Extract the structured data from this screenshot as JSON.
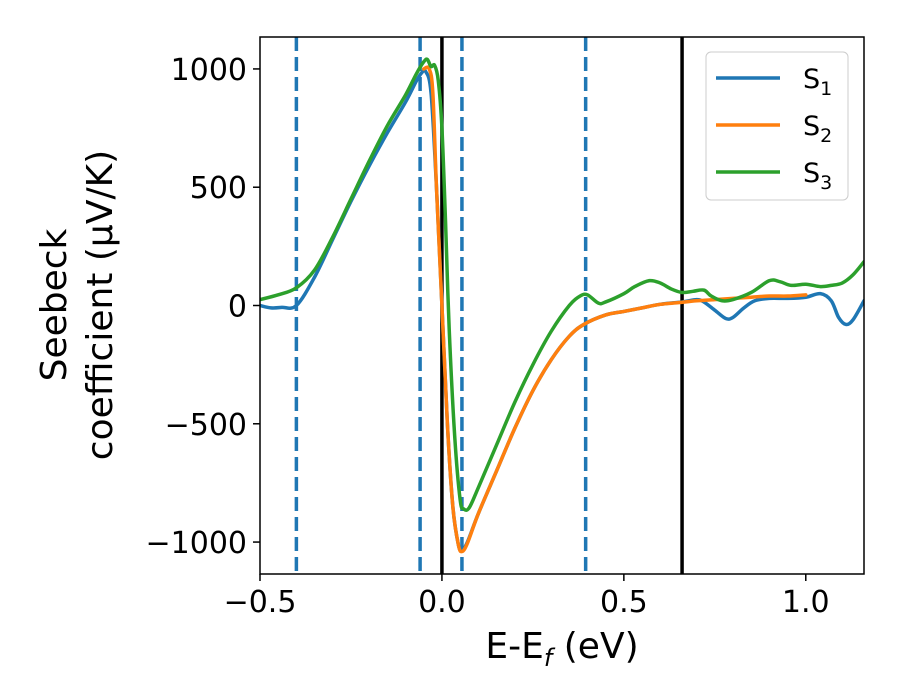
{
  "chart_data": {
    "type": "line",
    "xlabel": "E-E",
    "xlabel_sub": "f",
    "xlabel_unit": " (eV)",
    "ylabel_line1": "Seebeck",
    "ylabel_line2": "coefficient  (μV/K)",
    "xlim": [
      -0.5,
      1.16
    ],
    "ylim": [
      -1135,
      1135
    ],
    "x_ticks": [
      {
        "value": -0.5,
        "label": "−0.5"
      },
      {
        "value": 0.0,
        "label": "0.0"
      },
      {
        "value": 0.5,
        "label": "0.5"
      },
      {
        "value": 1.0,
        "label": "1.0"
      }
    ],
    "y_ticks": [
      {
        "value": 1000,
        "label": "1000"
      },
      {
        "value": 500,
        "label": "500"
      },
      {
        "value": 0,
        "label": "0"
      },
      {
        "value": -500,
        "label": "−500"
      },
      {
        "value": -1000,
        "label": "−1000"
      }
    ],
    "grid": false,
    "legend_position": "top-right",
    "vlines_solid": [
      0.0,
      0.66
    ],
    "vlines_dashed": [
      -0.4,
      -0.06,
      0.055,
      0.395
    ],
    "series": [
      {
        "name": "S",
        "sub": "1",
        "color": "#1f77b4",
        "points": [
          [
            -0.5,
            0
          ],
          [
            -0.47,
            -10
          ],
          [
            -0.44,
            -8
          ],
          [
            -0.4,
            0
          ],
          [
            -0.35,
            120
          ],
          [
            -0.3,
            280
          ],
          [
            -0.25,
            440
          ],
          [
            -0.2,
            590
          ],
          [
            -0.15,
            730
          ],
          [
            -0.1,
            860
          ],
          [
            -0.07,
            950
          ],
          [
            -0.055,
            985
          ],
          [
            -0.045,
            990
          ],
          [
            -0.03,
            900
          ],
          [
            -0.015,
            500
          ],
          [
            0.0,
            0
          ],
          [
            0.015,
            -500
          ],
          [
            0.03,
            -850
          ],
          [
            0.045,
            -1010
          ],
          [
            0.055,
            -1035
          ],
          [
            0.07,
            -1000
          ],
          [
            0.1,
            -880
          ],
          [
            0.15,
            -700
          ],
          [
            0.2,
            -520
          ],
          [
            0.25,
            -360
          ],
          [
            0.3,
            -230
          ],
          [
            0.35,
            -130
          ],
          [
            0.39,
            -80
          ],
          [
            0.45,
            -40
          ],
          [
            0.5,
            -25
          ],
          [
            0.55,
            -10
          ],
          [
            0.6,
            5
          ],
          [
            0.66,
            15
          ],
          [
            0.7,
            25
          ],
          [
            0.72,
            15
          ],
          [
            0.75,
            -20
          ],
          [
            0.78,
            -55
          ],
          [
            0.8,
            -50
          ],
          [
            0.83,
            -10
          ],
          [
            0.86,
            20
          ],
          [
            0.9,
            30
          ],
          [
            0.95,
            30
          ],
          [
            1.0,
            35
          ],
          [
            1.04,
            50
          ],
          [
            1.07,
            20
          ],
          [
            1.09,
            -50
          ],
          [
            1.11,
            -80
          ],
          [
            1.13,
            -60
          ],
          [
            1.16,
            20
          ]
        ]
      },
      {
        "name": "S",
        "sub": "2",
        "color": "#ff7f0e",
        "points": [
          [
            -0.05,
            1000
          ],
          [
            -0.035,
            1000
          ],
          [
            -0.025,
            900
          ],
          [
            -0.015,
            500
          ],
          [
            0.0,
            0
          ],
          [
            0.015,
            -500
          ],
          [
            0.03,
            -850
          ],
          [
            0.045,
            -1010
          ],
          [
            0.055,
            -1040
          ],
          [
            0.07,
            -1005
          ],
          [
            0.1,
            -880
          ],
          [
            0.15,
            -700
          ],
          [
            0.2,
            -520
          ],
          [
            0.25,
            -360
          ],
          [
            0.3,
            -230
          ],
          [
            0.35,
            -130
          ],
          [
            0.39,
            -80
          ],
          [
            0.45,
            -40
          ],
          [
            0.5,
            -25
          ],
          [
            0.55,
            -10
          ],
          [
            0.6,
            5
          ],
          [
            0.65,
            12
          ],
          [
            0.7,
            20
          ],
          [
            0.75,
            25
          ],
          [
            0.8,
            30
          ],
          [
            0.85,
            35
          ],
          [
            0.9,
            40
          ],
          [
            0.95,
            40
          ],
          [
            1.0,
            45
          ]
        ]
      },
      {
        "name": "S",
        "sub": "3",
        "color": "#2ca02c",
        "points": [
          [
            -0.5,
            25
          ],
          [
            -0.45,
            45
          ],
          [
            -0.4,
            75
          ],
          [
            -0.35,
            150
          ],
          [
            -0.3,
            290
          ],
          [
            -0.25,
            450
          ],
          [
            -0.2,
            610
          ],
          [
            -0.15,
            760
          ],
          [
            -0.1,
            890
          ],
          [
            -0.07,
            980
          ],
          [
            -0.05,
            1030
          ],
          [
            -0.04,
            1040
          ],
          [
            -0.03,
            1010
          ],
          [
            -0.02,
            1015
          ],
          [
            -0.01,
            950
          ],
          [
            0.0,
            750
          ],
          [
            0.01,
            350
          ],
          [
            0.02,
            -100
          ],
          [
            0.035,
            -550
          ],
          [
            0.05,
            -820
          ],
          [
            0.06,
            -860
          ],
          [
            0.075,
            -855
          ],
          [
            0.1,
            -770
          ],
          [
            0.15,
            -590
          ],
          [
            0.2,
            -410
          ],
          [
            0.25,
            -250
          ],
          [
            0.3,
            -110
          ],
          [
            0.35,
            0
          ],
          [
            0.38,
            40
          ],
          [
            0.4,
            45
          ],
          [
            0.43,
            10
          ],
          [
            0.45,
            15
          ],
          [
            0.5,
            50
          ],
          [
            0.53,
            80
          ],
          [
            0.57,
            105
          ],
          [
            0.6,
            95
          ],
          [
            0.63,
            70
          ],
          [
            0.66,
            55
          ],
          [
            0.69,
            60
          ],
          [
            0.72,
            65
          ],
          [
            0.74,
            40
          ],
          [
            0.77,
            20
          ],
          [
            0.8,
            25
          ],
          [
            0.85,
            55
          ],
          [
            0.9,
            105
          ],
          [
            0.93,
            100
          ],
          [
            0.96,
            85
          ],
          [
            1.0,
            90
          ],
          [
            1.04,
            80
          ],
          [
            1.07,
            85
          ],
          [
            1.1,
            95
          ],
          [
            1.13,
            130
          ],
          [
            1.16,
            185
          ]
        ]
      }
    ]
  }
}
